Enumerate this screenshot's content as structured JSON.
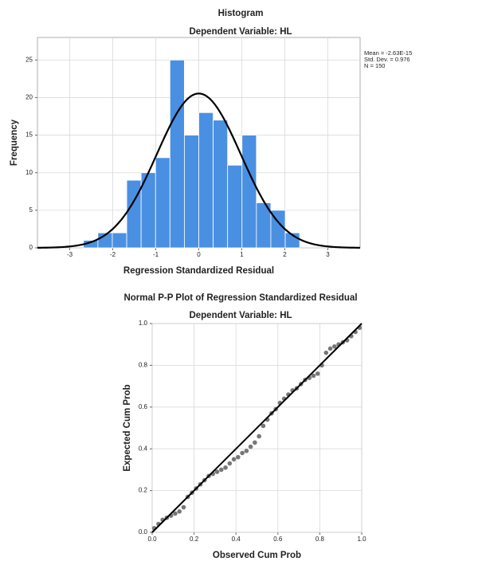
{
  "chart_data": [
    {
      "type": "histogram",
      "title": "Histogram",
      "subtitle": "Dependent Variable: HL",
      "x_label": "Regression Standardized Residual",
      "y_label": "Frequency",
      "bins": [
        -2.68,
        -2.345,
        -2.01,
        -1.675,
        -1.34,
        -1.005,
        -0.67,
        -0.335,
        0,
        0.335,
        0.67,
        1.005,
        1.34,
        1.675,
        2.01,
        2.345
      ],
      "values": [
        1,
        2,
        2,
        9,
        10,
        12,
        25,
        15,
        18,
        17,
        11,
        15,
        6,
        5,
        2
      ],
      "color": "#4a90e2",
      "stats": [
        {
          "value": -2.63e-15,
          "label": "Mean = -2.63E-15"
        },
        {
          "value": 0.976,
          "label": "Std. Dev. = 0.976"
        },
        {
          "value": 150,
          "label": "N = 150"
        }
      ],
      "normal_curve": true,
      "xlim": [
        -3.75,
        3.75
      ],
      "ylim": [
        0,
        28
      ],
      "xticks": [
        -3,
        -2,
        -1,
        0,
        1,
        2,
        3
      ],
      "yticks": [
        0,
        5,
        10,
        15,
        20,
        25
      ],
      "grid": true
    },
    {
      "type": "scatter",
      "title": "Normal P-P Plot of Regression Standardized Residual",
      "subtitle": "Dependent Variable: HL",
      "x_label": "Observed Cum Prob",
      "y_label": "Expected Cum Prob",
      "x": [
        0.01,
        0.03,
        0.05,
        0.07,
        0.09,
        0.11,
        0.13,
        0.15,
        0.17,
        0.19,
        0.21,
        0.23,
        0.25,
        0.27,
        0.29,
        0.31,
        0.33,
        0.35,
        0.37,
        0.39,
        0.41,
        0.43,
        0.45,
        0.47,
        0.49,
        0.51,
        0.53,
        0.55,
        0.57,
        0.59,
        0.61,
        0.63,
        0.65,
        0.67,
        0.69,
        0.71,
        0.73,
        0.75,
        0.77,
        0.79,
        0.81,
        0.83,
        0.85,
        0.87,
        0.89,
        0.91,
        0.93,
        0.95,
        0.97,
        0.99
      ],
      "values": [
        0.02,
        0.04,
        0.06,
        0.07,
        0.08,
        0.09,
        0.1,
        0.12,
        0.17,
        0.19,
        0.21,
        0.23,
        0.25,
        0.27,
        0.28,
        0.29,
        0.3,
        0.31,
        0.33,
        0.35,
        0.36,
        0.38,
        0.39,
        0.41,
        0.43,
        0.46,
        0.51,
        0.54,
        0.57,
        0.59,
        0.62,
        0.64,
        0.66,
        0.68,
        0.69,
        0.71,
        0.73,
        0.74,
        0.75,
        0.76,
        0.8,
        0.86,
        0.88,
        0.89,
        0.9,
        0.91,
        0.92,
        0.94,
        0.96,
        0.98
      ],
      "color": "#777777",
      "reference_line": true,
      "xlim": [
        0,
        1
      ],
      "ylim": [
        0,
        1
      ],
      "xticks": [
        {
          "value": 0,
          "label": "0.0"
        },
        {
          "value": 0.2,
          "label": "0.2"
        },
        {
          "value": 0.4,
          "label": "0.4"
        },
        {
          "value": 0.6,
          "label": "0.6"
        },
        {
          "value": 0.8,
          "label": "0.8"
        },
        {
          "value": 1,
          "label": "1.0"
        }
      ],
      "yticks": [
        {
          "value": 0,
          "label": "0.0"
        },
        {
          "value": 0.2,
          "label": "0.2"
        },
        {
          "value": 0.4,
          "label": "0.4"
        },
        {
          "value": 0.6,
          "label": "0.6"
        },
        {
          "value": 0.8,
          "label": "0.8"
        },
        {
          "value": 1,
          "label": "1.0"
        }
      ],
      "grid": true
    }
  ]
}
